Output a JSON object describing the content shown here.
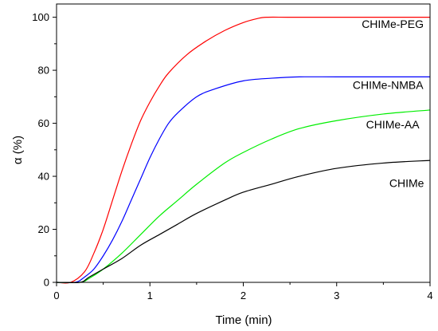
{
  "chart_data": {
    "type": "line",
    "title": "",
    "xlabel": "Time (min)",
    "ylabel": "α (%)",
    "xlim": [
      0,
      4
    ],
    "ylim": [
      0,
      105
    ],
    "x_ticks": [
      0,
      1,
      2,
      3,
      4
    ],
    "y_ticks": [
      0,
      20,
      40,
      60,
      80,
      100
    ],
    "x_tick_labels": [
      "0",
      "1",
      "2",
      "3",
      "4"
    ],
    "y_tick_labels": [
      "0",
      "20",
      "40",
      "60",
      "80",
      "100"
    ],
    "grid": false,
    "legend": "none",
    "series": [
      {
        "name": "CHIMe-PEG",
        "color": "#ff0000",
        "x": [
          0,
          0.15,
          0.3,
          0.4,
          0.5,
          0.6,
          0.7,
          0.8,
          0.9,
          1.0,
          1.1,
          1.2,
          1.4,
          1.6,
          1.8,
          2.0,
          2.15,
          2.25,
          2.5,
          3.0,
          3.5,
          4.0
        ],
        "y": [
          0,
          0,
          4,
          11,
          20,
          31,
          42,
          52,
          61,
          68,
          74,
          79,
          86,
          91,
          95,
          98,
          99.5,
          100,
          100,
          100,
          100,
          100
        ]
      },
      {
        "name": "CHIMe-NMBA",
        "color": "#0000ff",
        "x": [
          0,
          0.2,
          0.3,
          0.4,
          0.5,
          0.6,
          0.7,
          0.8,
          0.9,
          1.0,
          1.1,
          1.2,
          1.3,
          1.5,
          1.7,
          2.0,
          2.3,
          2.6,
          3.0,
          3.5,
          4.0
        ],
        "y": [
          0,
          0,
          2,
          5,
          10,
          16,
          23,
          31,
          39,
          47,
          54,
          60,
          64,
          70,
          73,
          76,
          77,
          77.5,
          77.5,
          77.5,
          77.5
        ]
      },
      {
        "name": "CHIMe-AA",
        "color": "#00ee00",
        "x": [
          0,
          0.25,
          0.35,
          0.5,
          0.7,
          0.9,
          1.1,
          1.3,
          1.5,
          1.8,
          2.0,
          2.3,
          2.6,
          3.0,
          3.5,
          4.0
        ],
        "y": [
          0,
          0,
          1.5,
          5,
          11,
          18,
          25,
          31,
          37,
          45,
          49,
          54,
          58,
          61,
          63.5,
          65
        ]
      },
      {
        "name": "CHIMe",
        "color": "#000000",
        "x": [
          0,
          0.25,
          0.35,
          0.5,
          0.7,
          0.9,
          1.1,
          1.3,
          1.5,
          1.8,
          2.0,
          2.3,
          2.6,
          3.0,
          3.5,
          4.0
        ],
        "y": [
          0,
          0,
          2,
          5,
          9,
          14,
          18,
          22,
          26,
          31,
          34,
          37,
          40,
          43,
          45,
          46
        ]
      }
    ],
    "annotations": [
      {
        "text": "CHIMe-PEG",
        "x": 3.6,
        "y": 96
      },
      {
        "text": "CHIMe-NMBA",
        "x": 3.55,
        "y": 73
      },
      {
        "text": "CHIMe-AA",
        "x": 3.6,
        "y": 58
      },
      {
        "text": "CHIMe",
        "x": 3.75,
        "y": 36
      }
    ]
  }
}
